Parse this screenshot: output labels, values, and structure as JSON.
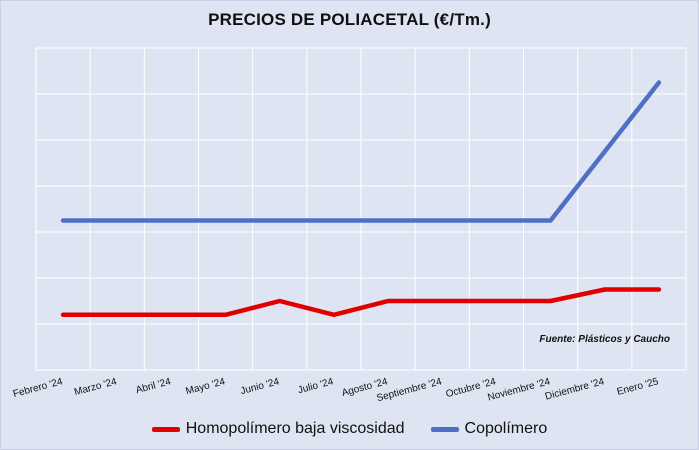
{
  "chart_data": {
    "type": "line",
    "title": "PRECIOS DE POLIACETAL (€/Tm.)",
    "xlabel": "",
    "ylabel": "",
    "categories": [
      "Febrero '24",
      "Marzo '24",
      "Abril '24",
      "Mayo '24",
      "Junio '24",
      "Julio '24",
      "Agosto '24",
      "Septiembre '24",
      "Octubre '24",
      "Noviembre '24",
      "Diciembre '24",
      "Enero '25"
    ],
    "ylim": [
      0,
      7
    ],
    "grid": true,
    "y_tick_labels_shown": false,
    "series": [
      {
        "name": "Homopolímero baja viscosidad",
        "color": "#e00000",
        "values": [
          1.2,
          1.2,
          1.2,
          1.2,
          1.5,
          1.2,
          1.5,
          1.5,
          1.5,
          1.5,
          1.75,
          1.75
        ]
      },
      {
        "name": "Copolímero",
        "color": "#4f6fc6",
        "values": [
          3.25,
          3.25,
          3.25,
          3.25,
          3.25,
          3.25,
          3.25,
          3.25,
          3.25,
          3.25,
          4.75,
          6.25
        ]
      }
    ],
    "legend": "bottom",
    "source_note": "Fuente: Plásticos y Caucho"
  }
}
